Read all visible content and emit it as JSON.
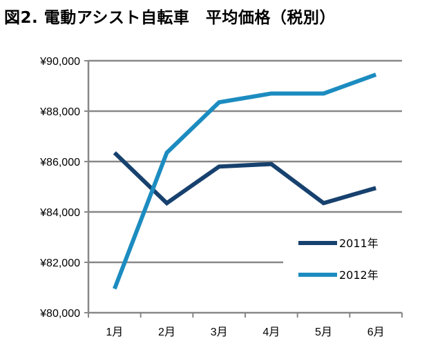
{
  "title": "図2. 電動アシスト自転車　平均価格（税別）",
  "chart_data": {
    "type": "line",
    "title": "図2. 電動アシスト自転車　平均価格（税別）",
    "categories": [
      "1月",
      "2月",
      "3月",
      "4月",
      "5月",
      "6月"
    ],
    "y_ticks": [
      "¥80,000",
      "¥82,000",
      "¥84,000",
      "¥86,000",
      "¥88,000",
      "¥90,000"
    ],
    "ylim": [
      80000,
      90000
    ],
    "ystep": 2000,
    "grid": true,
    "legend_position": "bottom-right",
    "series": [
      {
        "name": "2011年",
        "color": "#17416e",
        "values": [
          86350,
          84350,
          85800,
          85900,
          84350,
          84950
        ]
      },
      {
        "name": "2012年",
        "color": "#1c8cc0",
        "values": [
          80950,
          86350,
          88350,
          88700,
          88700,
          89450
        ]
      }
    ]
  }
}
